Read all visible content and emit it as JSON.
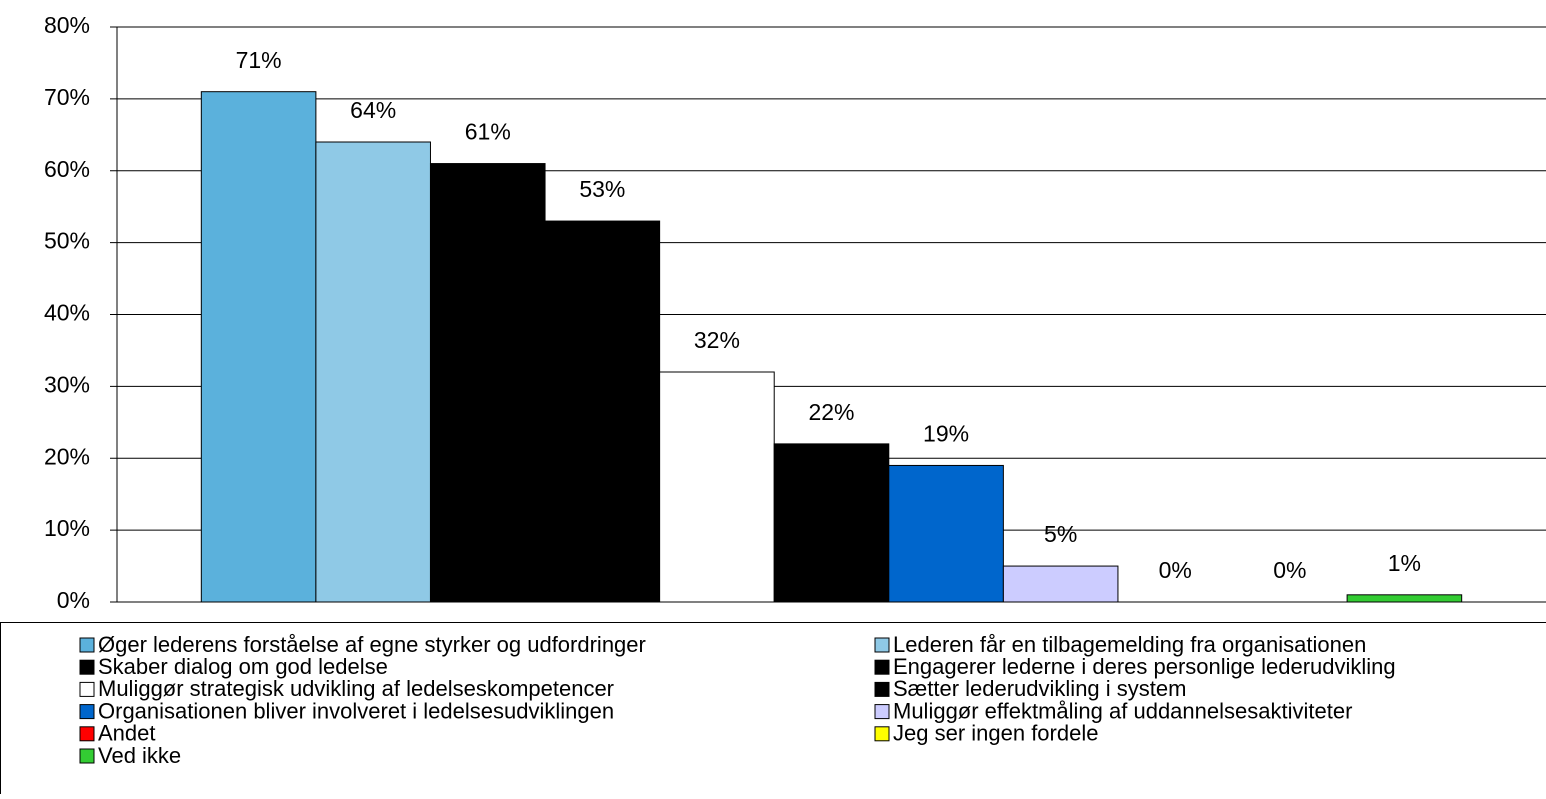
{
  "chart_data": {
    "type": "bar",
    "series": [
      {
        "name": "Øger lederens forståelse af egne styrker og udfordringer",
        "color": "#5bb1dc",
        "values": [
          71
        ],
        "value_labels": [
          "71%"
        ]
      },
      {
        "name": "Lederen får en tilbagemelding fra organisationen",
        "color": "#8fc9e6",
        "values": [
          64
        ],
        "value_labels": [
          "64%"
        ]
      },
      {
        "name": "Skaber dialog om god ledelse",
        "color": "#000000",
        "values": [
          61
        ],
        "value_labels": [
          "61%"
        ]
      },
      {
        "name": "Engagerer lederne i deres personlige lederudvikling",
        "color": "#000000",
        "values": [
          53
        ],
        "value_labels": [
          "53%"
        ]
      },
      {
        "name": "Muliggør strategisk udvikling af ledelseskompetencer",
        "color": "#ffffff",
        "values": [
          32
        ],
        "value_labels": [
          "32%"
        ]
      },
      {
        "name": "Sætter lederudvikling i system",
        "color": "#000000",
        "values": [
          22
        ],
        "value_labels": [
          "22%"
        ]
      },
      {
        "name": "Organisationen bliver involveret i ledelsesudviklingen",
        "color": "#0066cc",
        "values": [
          19
        ],
        "value_labels": [
          "19%"
        ]
      },
      {
        "name": "Muliggør effektmåling af uddannelsesaktiviteter",
        "color": "#ccccff",
        "values": [
          5
        ],
        "value_labels": [
          "5%"
        ]
      },
      {
        "name": "Andet",
        "color": "#ff0000",
        "values": [
          0
        ],
        "value_labels": [
          "0%"
        ]
      },
      {
        "name": "Jeg ser ingen fordele",
        "color": "#ffff00",
        "values": [
          0
        ],
        "value_labels": [
          "0%"
        ]
      },
      {
        "name": "Ved ikke",
        "color": "#33cc33",
        "values": [
          1
        ],
        "value_labels": [
          "1%"
        ]
      }
    ],
    "ylim": [
      0,
      80
    ],
    "yticks": [
      {
        "value": 0,
        "label": "0%"
      },
      {
        "value": 10,
        "label": "10%"
      },
      {
        "value": 20,
        "label": "20%"
      },
      {
        "value": 30,
        "label": "30%"
      },
      {
        "value": 40,
        "label": "40%"
      },
      {
        "value": 50,
        "label": "50%"
      },
      {
        "value": 60,
        "label": "60%"
      },
      {
        "value": 70,
        "label": "70%"
      },
      {
        "value": 80,
        "label": "80%"
      }
    ],
    "grid": true
  }
}
